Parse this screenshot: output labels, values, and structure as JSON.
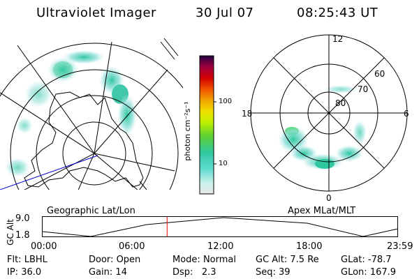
{
  "header": {
    "instrument": "Ultraviolet Imager",
    "date": "30 Jul 07",
    "time": "08:25:43 UT"
  },
  "left_panel": {
    "caption": "Geographic Lat/Lon"
  },
  "right_panel": {
    "caption": "Apex MLat/MLT",
    "mlt_labels": [
      "12",
      "18",
      "6",
      "0"
    ],
    "mlat_labels": [
      "60",
      "70",
      "80"
    ]
  },
  "colorbar": {
    "unit": "photon cm⁻²s⁻¹",
    "ticks": [
      "100",
      "10"
    ],
    "colors": [
      "#e8e8e8",
      "#c8f0e8",
      "#80e0d0",
      "#40d0c0",
      "#30c890",
      "#60d030",
      "#a0e000",
      "#e0f000",
      "#f0d000",
      "#f0a000",
      "#f06000",
      "#e01000",
      "#c00000",
      "#a00040",
      "#600060",
      "#300050",
      "#100030"
    ]
  },
  "timeline": {
    "axis_label": "GC Alt",
    "y_ticks": [
      "9.0",
      "1.8"
    ],
    "x_ticks": [
      "00:00",
      "06:00",
      "12:00",
      "18:00",
      "23:59"
    ],
    "current_time_fraction": 0.351
  },
  "info": {
    "row1": [
      {
        "key": "Flt:",
        "val": "LBHL"
      },
      {
        "key": "Door:",
        "val": "Open"
      },
      {
        "key": "Mode:",
        "val": "Normal"
      },
      {
        "key": "GC Alt:",
        "val": "7.5 Re"
      },
      {
        "key": "GLat:",
        "val": "-78.7"
      }
    ],
    "row2": [
      {
        "key": "IP:",
        "val": "36.0"
      },
      {
        "key": "Gain:",
        "val": "14"
      },
      {
        "key": "Dsp:",
        "val": "2.3"
      },
      {
        "key": "Seq:",
        "val": "39"
      },
      {
        "key": "GLon:",
        "val": "167.9"
      }
    ]
  }
}
